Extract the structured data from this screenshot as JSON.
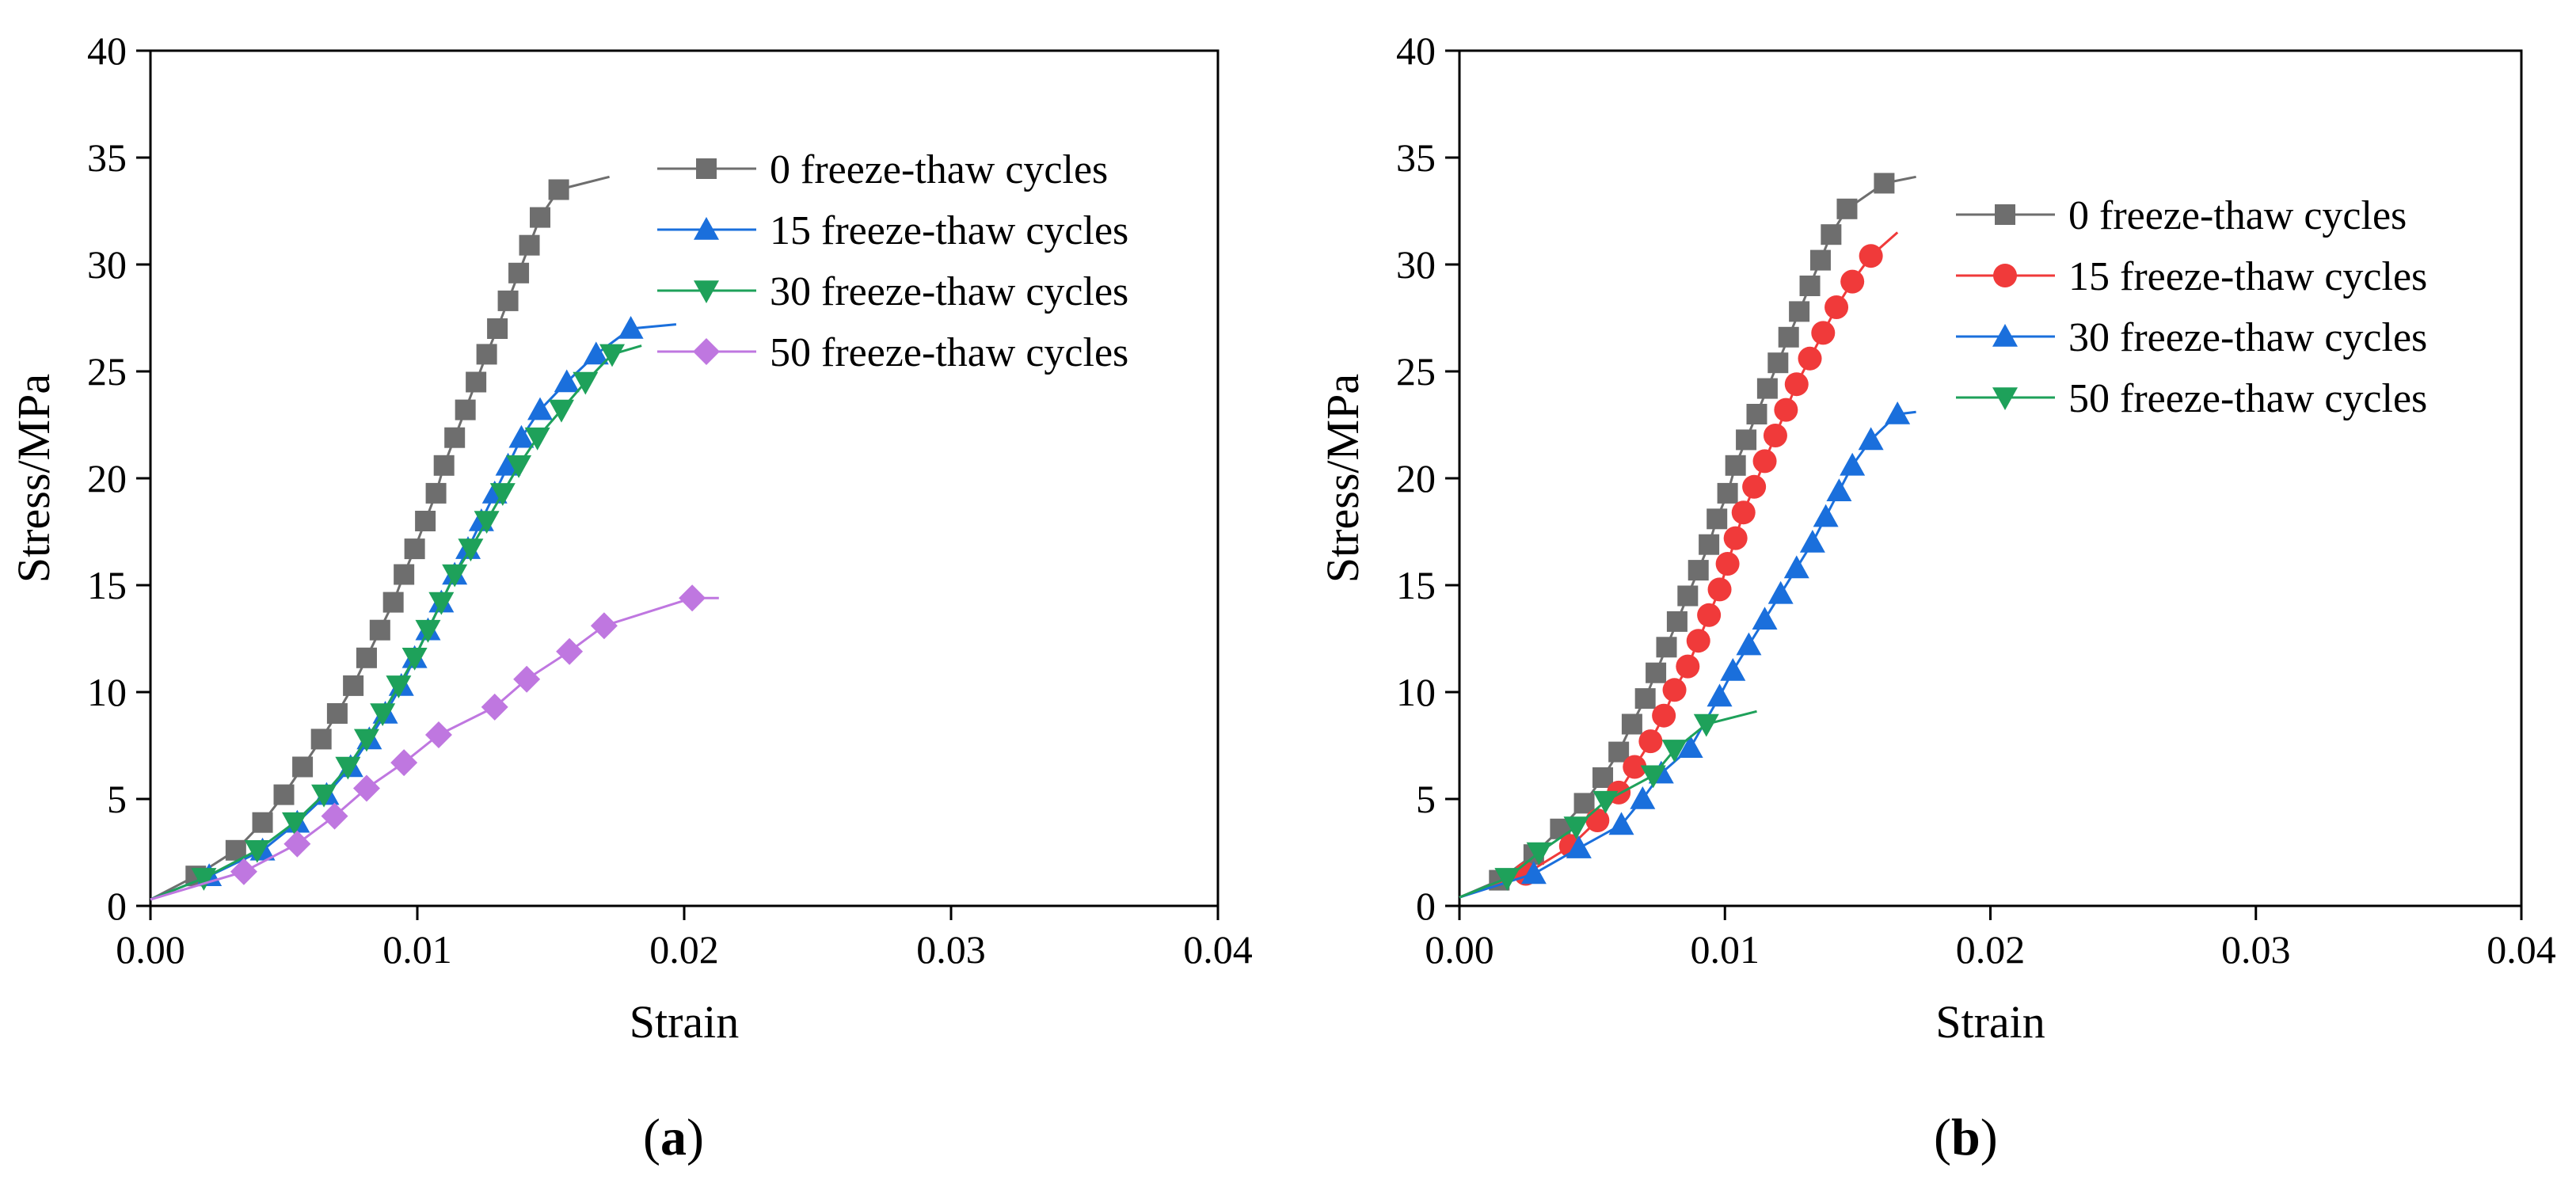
{
  "figure": {
    "panels": [
      {
        "label_prefix": "(",
        "label_letter": "a",
        "label_suffix": ")"
      },
      {
        "label_prefix": "(",
        "label_letter": "b",
        "label_suffix": ")"
      }
    ]
  },
  "chart_data": [
    {
      "type": "line",
      "panel": "a",
      "title": "",
      "xlabel": "Strain",
      "ylabel": "Stress/MPa",
      "xlim": [
        0,
        0.04
      ],
      "ylim": [
        0,
        40
      ],
      "xticks": [
        "0.00",
        "0.01",
        "0.02",
        "0.03",
        "0.04"
      ],
      "yticks": [
        "0",
        "5",
        "10",
        "15",
        "20",
        "25",
        "30",
        "35",
        "40"
      ],
      "grid": false,
      "legend_position": "top-right",
      "series": [
        {
          "name": "0 freeze-thaw cycles",
          "color": "#6e6e6e",
          "marker": "square",
          "points": [
            [
              0.0,
              0.3
            ],
            [
              0.0017,
              1.4
            ],
            [
              0.0032,
              2.6
            ],
            [
              0.0042,
              3.9
            ],
            [
              0.005,
              5.2
            ],
            [
              0.0057,
              6.5
            ],
            [
              0.0064,
              7.8
            ],
            [
              0.007,
              9.0
            ],
            [
              0.0076,
              10.3
            ],
            [
              0.0081,
              11.6
            ],
            [
              0.0086,
              12.9
            ],
            [
              0.0091,
              14.2
            ],
            [
              0.0095,
              15.5
            ],
            [
              0.0099,
              16.7
            ],
            [
              0.0103,
              18.0
            ],
            [
              0.0107,
              19.3
            ],
            [
              0.011,
              20.6
            ],
            [
              0.0114,
              21.9
            ],
            [
              0.0118,
              23.2
            ],
            [
              0.0122,
              24.5
            ],
            [
              0.0126,
              25.8
            ],
            [
              0.013,
              27.0
            ],
            [
              0.0134,
              28.3
            ],
            [
              0.0138,
              29.6
            ],
            [
              0.0142,
              30.9
            ],
            [
              0.0146,
              32.2
            ],
            [
              0.0153,
              33.5
            ],
            [
              0.0172,
              34.1
            ]
          ]
        },
        {
          "name": "15 freeze-thaw cycles",
          "color": "#1a6fdc",
          "marker": "triangle-up",
          "points": [
            [
              0.0,
              0.3
            ],
            [
              0.0022,
              1.4
            ],
            [
              0.0042,
              2.6
            ],
            [
              0.0055,
              3.9
            ],
            [
              0.0066,
              5.2
            ],
            [
              0.0075,
              6.5
            ],
            [
              0.0082,
              7.8
            ],
            [
              0.0088,
              9.0
            ],
            [
              0.0094,
              10.3
            ],
            [
              0.0099,
              11.6
            ],
            [
              0.0104,
              12.9
            ],
            [
              0.0109,
              14.2
            ],
            [
              0.0114,
              15.5
            ],
            [
              0.0119,
              16.7
            ],
            [
              0.0124,
              18.0
            ],
            [
              0.0129,
              19.3
            ],
            [
              0.0134,
              20.6
            ],
            [
              0.0139,
              21.9
            ],
            [
              0.0146,
              23.2
            ],
            [
              0.0156,
              24.5
            ],
            [
              0.0167,
              25.8
            ],
            [
              0.018,
              27.0
            ],
            [
              0.0197,
              27.2
            ]
          ]
        },
        {
          "name": "30 freeze-thaw cycles",
          "color": "#1ea15a",
          "marker": "triangle-down",
          "points": [
            [
              0.0,
              0.3
            ],
            [
              0.002,
              1.3
            ],
            [
              0.004,
              2.6
            ],
            [
              0.0054,
              3.9
            ],
            [
              0.0065,
              5.2
            ],
            [
              0.0074,
              6.5
            ],
            [
              0.0081,
              7.8
            ],
            [
              0.0087,
              9.0
            ],
            [
              0.0093,
              10.3
            ],
            [
              0.0099,
              11.6
            ],
            [
              0.0104,
              12.9
            ],
            [
              0.0109,
              14.2
            ],
            [
              0.0114,
              15.5
            ],
            [
              0.012,
              16.7
            ],
            [
              0.0126,
              18.0
            ],
            [
              0.0132,
              19.3
            ],
            [
              0.0138,
              20.6
            ],
            [
              0.0145,
              21.9
            ],
            [
              0.0154,
              23.2
            ],
            [
              0.0163,
              24.5
            ],
            [
              0.0173,
              25.8
            ],
            [
              0.0184,
              26.2
            ]
          ]
        },
        {
          "name": "50 freeze-thaw cycles",
          "color": "#bf77e0",
          "marker": "diamond",
          "points": [
            [
              0.0,
              0.3
            ],
            [
              0.0035,
              1.6
            ],
            [
              0.0055,
              2.9
            ],
            [
              0.0069,
              4.2
            ],
            [
              0.0081,
              5.5
            ],
            [
              0.0095,
              6.7
            ],
            [
              0.0108,
              8.0
            ],
            [
              0.0129,
              9.3
            ],
            [
              0.0141,
              10.6
            ],
            [
              0.0157,
              11.9
            ],
            [
              0.017,
              13.1
            ],
            [
              0.0203,
              14.4
            ],
            [
              0.0213,
              14.4
            ]
          ]
        }
      ]
    },
    {
      "type": "line",
      "panel": "b",
      "title": "",
      "xlabel": "Strain",
      "ylabel": "Stress/MPa",
      "xlim": [
        0,
        0.04
      ],
      "ylim": [
        0,
        40
      ],
      "xticks": [
        "0.00",
        "0.01",
        "0.02",
        "0.03",
        "0.04"
      ],
      "yticks": [
        "0",
        "5",
        "10",
        "15",
        "20",
        "25",
        "30",
        "35",
        "40"
      ],
      "grid": false,
      "legend_position": "top-right",
      "series": [
        {
          "name": "0 freeze-thaw cycles",
          "color": "#6e6e6e",
          "marker": "square",
          "points": [
            [
              0.0,
              0.4
            ],
            [
              0.0015,
              1.2
            ],
            [
              0.0028,
              2.4
            ],
            [
              0.0038,
              3.6
            ],
            [
              0.0047,
              4.8
            ],
            [
              0.0054,
              6.0
            ],
            [
              0.006,
              7.2
            ],
            [
              0.0065,
              8.5
            ],
            [
              0.007,
              9.7
            ],
            [
              0.0074,
              10.9
            ],
            [
              0.0078,
              12.1
            ],
            [
              0.0082,
              13.3
            ],
            [
              0.0086,
              14.5
            ],
            [
              0.009,
              15.7
            ],
            [
              0.0094,
              16.9
            ],
            [
              0.0097,
              18.1
            ],
            [
              0.0101,
              19.3
            ],
            [
              0.0104,
              20.6
            ],
            [
              0.0108,
              21.8
            ],
            [
              0.0112,
              23.0
            ],
            [
              0.0116,
              24.2
            ],
            [
              0.012,
              25.4
            ],
            [
              0.0124,
              26.6
            ],
            [
              0.0128,
              27.8
            ],
            [
              0.0132,
              29.0
            ],
            [
              0.0136,
              30.2
            ],
            [
              0.014,
              31.4
            ],
            [
              0.0146,
              32.6
            ],
            [
              0.016,
              33.8
            ],
            [
              0.0172,
              34.1
            ]
          ]
        },
        {
          "name": "15 freeze-thaw cycles",
          "color": "#f03a3a",
          "marker": "circle",
          "points": [
            [
              0.0,
              0.4
            ],
            [
              0.0025,
              1.5
            ],
            [
              0.0042,
              2.8
            ],
            [
              0.0052,
              4.0
            ],
            [
              0.006,
              5.3
            ],
            [
              0.0066,
              6.5
            ],
            [
              0.0072,
              7.7
            ],
            [
              0.0077,
              8.9
            ],
            [
              0.0081,
              10.1
            ],
            [
              0.0086,
              11.2
            ],
            [
              0.009,
              12.4
            ],
            [
              0.0094,
              13.6
            ],
            [
              0.0098,
              14.8
            ],
            [
              0.0101,
              16.0
            ],
            [
              0.0104,
              17.2
            ],
            [
              0.0107,
              18.4
            ],
            [
              0.0111,
              19.6
            ],
            [
              0.0115,
              20.8
            ],
            [
              0.0119,
              22.0
            ],
            [
              0.0123,
              23.2
            ],
            [
              0.0127,
              24.4
            ],
            [
              0.0132,
              25.6
            ],
            [
              0.0137,
              26.8
            ],
            [
              0.0142,
              28.0
            ],
            [
              0.0148,
              29.2
            ],
            [
              0.0155,
              30.4
            ],
            [
              0.0165,
              31.5
            ]
          ]
        },
        {
          "name": "30 freeze-thaw cycles",
          "color": "#1a6fdc",
          "marker": "triangle-up",
          "points": [
            [
              0.0,
              0.4
            ],
            [
              0.0028,
              1.5
            ],
            [
              0.0045,
              2.7
            ],
            [
              0.0061,
              3.8
            ],
            [
              0.0069,
              5.0
            ],
            [
              0.0076,
              6.2
            ],
            [
              0.0087,
              7.4
            ],
            [
              0.0098,
              9.8
            ],
            [
              0.0103,
              11.0
            ],
            [
              0.0109,
              12.2
            ],
            [
              0.0115,
              13.4
            ],
            [
              0.0121,
              14.6
            ],
            [
              0.0127,
              15.8
            ],
            [
              0.0133,
              17.0
            ],
            [
              0.0138,
              18.2
            ],
            [
              0.0143,
              19.4
            ],
            [
              0.0148,
              20.6
            ],
            [
              0.0155,
              21.8
            ],
            [
              0.0165,
              23.0
            ],
            [
              0.0172,
              23.1
            ]
          ]
        },
        {
          "name": "50 freeze-thaw cycles",
          "color": "#1ea15a",
          "marker": "triangle-down",
          "points": [
            [
              0.0,
              0.4
            ],
            [
              0.0018,
              1.3
            ],
            [
              0.003,
              2.5
            ],
            [
              0.0044,
              3.7
            ],
            [
              0.0055,
              4.9
            ],
            [
              0.0073,
              6.1
            ],
            [
              0.0081,
              7.3
            ],
            [
              0.0093,
              8.5
            ],
            [
              0.0112,
              9.1
            ]
          ]
        }
      ]
    }
  ]
}
